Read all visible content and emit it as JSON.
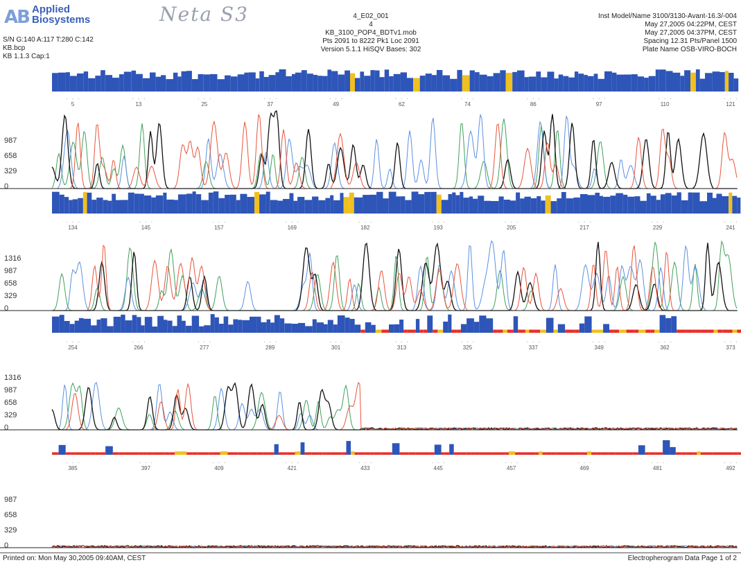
{
  "logo": {
    "brand_line1": "Applied",
    "brand_line2": "Biosystems"
  },
  "handwritten_note": "Neta S3",
  "header": {
    "left": [
      "S/N G:140 A:117 T:280 C:142",
      "KB.bcp",
      "KB 1.1.3    Cap:1"
    ],
    "center": [
      "4_E02_001",
      "4",
      "KB_3100_POP4_BDTv1.mob",
      "Pts 2091 to 8222 Pk1 Loc 2091",
      "Version 5.1.1    HiSQV Bases: 302"
    ],
    "right": [
      "Inst Model/Name 3100/3130-Avant-16.3/-004",
      "May 27,2005 04:22PM, CEST",
      "May 27,2005 04:37PM, CEST",
      "Spacing 12.31 Pts/Panel 1500",
      "Plate Name OSB-VIRO-BOCH"
    ]
  },
  "footer": {
    "left": "Printed on: Mon May 30,2005 09:40AM, CEST",
    "right": "Electropherogram Data Page 1 of 2"
  },
  "chart_data": {
    "type": "line",
    "title": "",
    "series": [
      {
        "name": "A",
        "color": "#3ea05a"
      },
      {
        "name": "C",
        "color": "#5a8fe0"
      },
      {
        "name": "G",
        "color": "#111111"
      },
      {
        "name": "T",
        "color": "#e8533a"
      }
    ],
    "qv_colors": {
      "high": "#2e55b8",
      "medium": "#f0c020",
      "low": "#e8302a"
    },
    "panels": [
      {
        "y_ticks": [
          "987",
          "658",
          "329",
          "0"
        ],
        "base_ticks": [
          "5",
          "13",
          "25",
          "37",
          "49",
          "62",
          "74",
          "86",
          "97",
          "110",
          "121"
        ],
        "qv_level": "high",
        "signal_end": 1.0
      },
      {
        "y_ticks": [
          "",
          "",
          "",
          ""
        ],
        "base_ticks": [
          "134",
          "145",
          "157",
          "169",
          "182",
          "193",
          "205",
          "217",
          "229",
          "241"
        ],
        "qv_level": "high",
        "signal_end": 1.0
      },
      {
        "y_ticks": [
          "1316",
          "987",
          "658",
          "329",
          "0"
        ],
        "base_ticks": [
          "254",
          "266",
          "277",
          "289",
          "301",
          "313",
          "325",
          "337",
          "349",
          "362",
          "373"
        ],
        "qv_level": "mixed",
        "signal_end": 1.0
      },
      {
        "y_ticks": [
          "1316",
          "987",
          "658",
          "329",
          "0"
        ],
        "base_ticks": [
          "385",
          "397",
          "409",
          "421",
          "433",
          "445",
          "457",
          "469",
          "481",
          "492"
        ],
        "qv_level": "low",
        "signal_end": 0.45
      },
      {
        "y_ticks": [
          "987",
          "658",
          "329",
          "0"
        ],
        "base_ticks": [],
        "qv_level": "none",
        "signal_end": 0.0
      }
    ]
  }
}
